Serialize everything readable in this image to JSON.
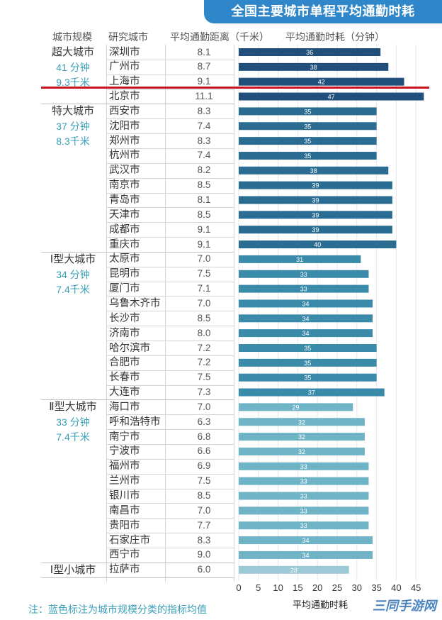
{
  "title": "全国主要城市单程平均通勤时耗",
  "headers": {
    "scale": "城市规模",
    "city": "研究城市",
    "distance": "平均通勤距离（千米）",
    "time": "平均通勤时耗（分钟）"
  },
  "groups": [
    {
      "name": "超大城市",
      "avg_time": "41 分钟",
      "avg_dist": "9.3千米"
    },
    {
      "name": "特大城市",
      "avg_time": "37 分钟",
      "avg_dist": "8.3千米"
    },
    {
      "name": "Ⅰ型大城市",
      "avg_time": "34 分钟",
      "avg_dist": "7.4千米"
    },
    {
      "name": "Ⅱ型大城市",
      "avg_time": "33 分钟",
      "avg_dist": "7.4千米"
    },
    {
      "name": "Ⅰ型小城市",
      "avg_time": "",
      "avg_dist": ""
    }
  ],
  "chart_data": {
    "type": "bar",
    "orientation": "horizontal",
    "title": "全国主要城市单程平均通勤时耗",
    "xlabel": "平均通勤时耗",
    "xlim": [
      0,
      47
    ],
    "xticks": [
      0,
      5,
      10,
      15,
      20,
      25,
      30,
      35,
      40,
      45
    ],
    "rows": [
      {
        "group": 0,
        "city": "深圳市",
        "distance": "8.1",
        "time": 36
      },
      {
        "group": 0,
        "city": "广州市",
        "distance": "8.7",
        "time": 38
      },
      {
        "group": 0,
        "city": "上海市",
        "distance": "9.1",
        "time": 42
      },
      {
        "group": 0,
        "city": "北京市",
        "distance": "11.1",
        "time": 47
      },
      {
        "group": 1,
        "city": "西安市",
        "distance": "8.3",
        "time": 35
      },
      {
        "group": 1,
        "city": "沈阳市",
        "distance": "7.4",
        "time": 35
      },
      {
        "group": 1,
        "city": "郑州市",
        "distance": "8.3",
        "time": 35
      },
      {
        "group": 1,
        "city": "杭州市",
        "distance": "7.4",
        "time": 35
      },
      {
        "group": 1,
        "city": "武汉市",
        "distance": "8.2",
        "time": 38
      },
      {
        "group": 1,
        "city": "南京市",
        "distance": "8.5",
        "time": 39
      },
      {
        "group": 1,
        "city": "青岛市",
        "distance": "8.1",
        "time": 39
      },
      {
        "group": 1,
        "city": "天津市",
        "distance": "8.5",
        "time": 39
      },
      {
        "group": 1,
        "city": "成都市",
        "distance": "9.1",
        "time": 39
      },
      {
        "group": 1,
        "city": "重庆市",
        "distance": "9.1",
        "time": 40
      },
      {
        "group": 2,
        "city": "太原市",
        "distance": "7.0",
        "time": 31
      },
      {
        "group": 2,
        "city": "昆明市",
        "distance": "7.5",
        "time": 33
      },
      {
        "group": 2,
        "city": "厦门市",
        "distance": "7.1",
        "time": 33
      },
      {
        "group": 2,
        "city": "乌鲁木齐市",
        "distance": "7.0",
        "time": 34
      },
      {
        "group": 2,
        "city": "长沙市",
        "distance": "8.5",
        "time": 34
      },
      {
        "group": 2,
        "city": "济南市",
        "distance": "8.0",
        "time": 34
      },
      {
        "group": 2,
        "city": "哈尔滨市",
        "distance": "7.2",
        "time": 35
      },
      {
        "group": 2,
        "city": "合肥市",
        "distance": "7.2",
        "time": 35
      },
      {
        "group": 2,
        "city": "长春市",
        "distance": "7.5",
        "time": 35
      },
      {
        "group": 2,
        "city": "大连市",
        "distance": "7.3",
        "time": 37
      },
      {
        "group": 3,
        "city": "海口市",
        "distance": "7.0",
        "time": 29
      },
      {
        "group": 3,
        "city": "呼和浩特市",
        "distance": "6.3",
        "time": 32
      },
      {
        "group": 3,
        "city": "南宁市",
        "distance": "6.8",
        "time": 32
      },
      {
        "group": 3,
        "city": "宁波市",
        "distance": "6.6",
        "time": 32
      },
      {
        "group": 3,
        "city": "福州市",
        "distance": "6.9",
        "time": 33
      },
      {
        "group": 3,
        "city": "兰州市",
        "distance": "7.5",
        "time": 33
      },
      {
        "group": 3,
        "city": "银川市",
        "distance": "8.5",
        "time": 33
      },
      {
        "group": 3,
        "city": "南昌市",
        "distance": "7.0",
        "time": 33
      },
      {
        "group": 3,
        "city": "贵阳市",
        "distance": "7.7",
        "time": 33
      },
      {
        "group": 3,
        "city": "石家庄市",
        "distance": "8.3",
        "time": 34
      },
      {
        "group": 3,
        "city": "西宁市",
        "distance": "9.0",
        "time": 34
      },
      {
        "group": 4,
        "city": "拉萨市",
        "distance": "6.0",
        "time": 28
      }
    ]
  },
  "colors": {
    "title_bg": "#2f86c8",
    "group_bars": [
      "#1f4f7a",
      "#2b6d92",
      "#3a8aaa",
      "#6fb3c7",
      "#9bc9d5"
    ],
    "avg_text": "#3a9fb8",
    "red_line": "#c8141e"
  },
  "note": "注：蓝色标注为城市规模分类的指标均值",
  "watermark": "三同手游网"
}
